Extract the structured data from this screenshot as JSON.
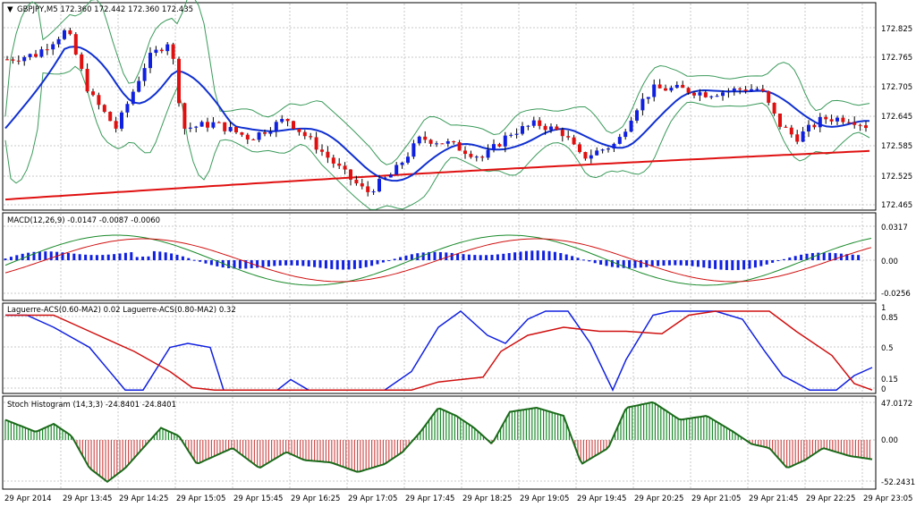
{
  "main_panel": {
    "header": "GBPJPY,M5  172.360 172.442 172.360 172.435",
    "price_ticks": [
      "172.825",
      "172.765",
      "172.705",
      "172.645",
      "172.585",
      "172.525",
      "172.465"
    ],
    "candle_bull_color": "#1020e0",
    "candle_bear_color": "#e01010",
    "ma_fast_color": "#1030d0",
    "ma_slow_color": "#e01010",
    "bands_color": "#3a9a5a"
  },
  "macd_panel": {
    "header": "MACD(12,26,9) -0.0147 -0.0087 -0.0060",
    "ticks": [
      "0.0317",
      "0.00",
      "-0.0256"
    ]
  },
  "laguerre_panel": {
    "header": "Laguerre-ACS(0.60-MA2) 0.02  Laguerre-ACS(0.80-MA2) 0.32",
    "ticks": [
      "1",
      "0.85",
      "0.5",
      "0.15",
      "0"
    ]
  },
  "stoch_panel": {
    "header": "Stoch Histogram (14,3,3) -24.8401 -24.8401",
    "ticks": [
      "47.0172",
      "0.00",
      "-52.2431"
    ]
  },
  "time_axis": [
    "29 Apr 2014",
    "29 Apr 13:45",
    "29 Apr 14:25",
    "29 Apr 15:05",
    "29 Apr 15:45",
    "29 Apr 16:25",
    "29 Apr 17:05",
    "29 Apr 17:45",
    "29 Apr 18:25",
    "29 Apr 19:05",
    "29 Apr 19:45",
    "29 Apr 20:25",
    "29 Apr 21:05",
    "29 Apr 21:45",
    "29 Apr 22:25",
    "29 Apr 23:05"
  ],
  "chart_data": {
    "type": "candlestick",
    "symbol": "GBPJPY",
    "timeframe": "M5",
    "ohlc_close_sample": [
      172.76,
      172.74,
      172.81,
      172.7,
      172.62,
      172.6,
      172.66,
      172.72,
      172.6,
      172.66,
      172.63,
      172.6,
      172.58,
      172.5,
      172.55,
      172.59,
      172.6,
      172.58,
      172.56,
      172.6,
      172.63,
      172.6,
      172.58,
      172.57,
      172.6,
      172.66,
      172.7,
      172.67,
      172.65,
      172.62,
      172.65,
      172.63,
      172.62,
      172.61
    ]
  }
}
